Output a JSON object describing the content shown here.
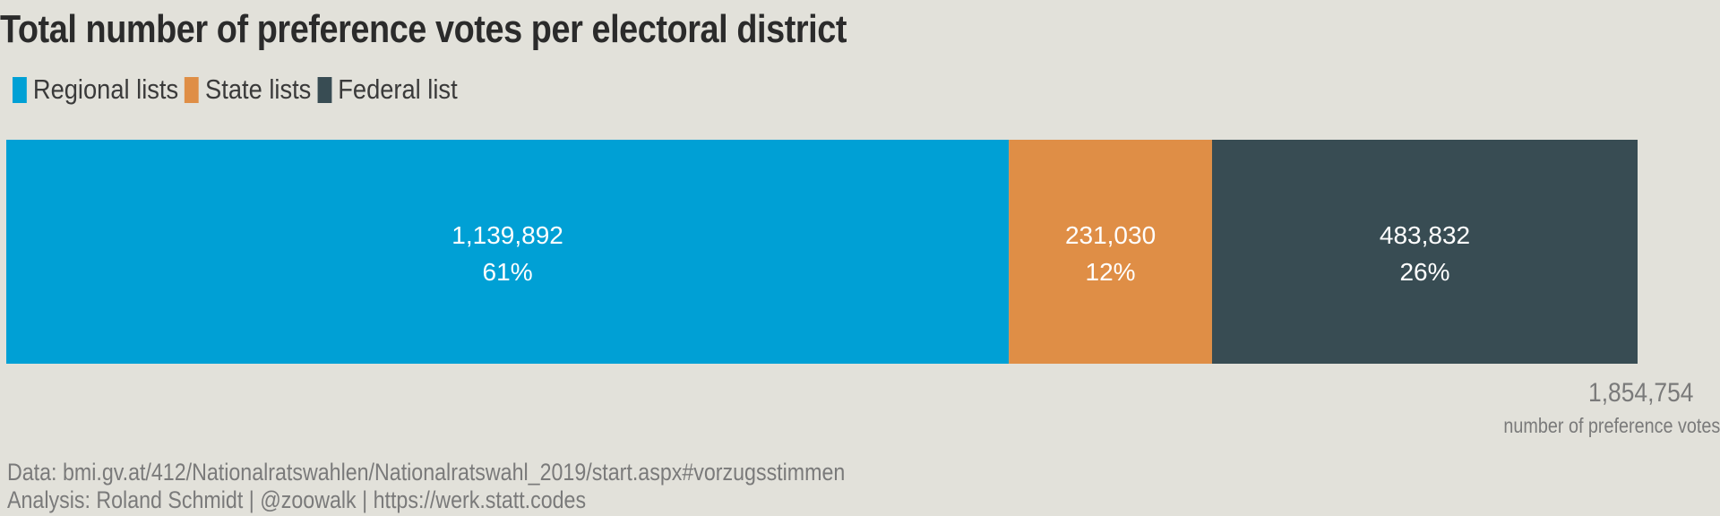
{
  "chart_data": {
    "type": "bar",
    "orientation": "horizontal-stacked",
    "title": "Total number of preference votes per electoral district",
    "series": [
      {
        "name": "Regional lists",
        "value": 1139892,
        "value_label": "1,139,892",
        "percent_label": "61%",
        "color": "#00a0d5"
      },
      {
        "name": "State lists",
        "value": 231030,
        "value_label": "231,030",
        "percent_label": "12%",
        "color": "#df8e46"
      },
      {
        "name": "Federal list",
        "value": 483832,
        "value_label": "483,832",
        "percent_label": "26%",
        "color": "#384c53"
      }
    ],
    "total": 1854754,
    "total_label": "1,854,754",
    "total_caption": "number of preference votes",
    "legend_position": "top-left"
  },
  "footer": {
    "source": "Data: bmi.gv.at/412/Nationalratswahlen/Nationalratswahl_2019/start.aspx#vorzugsstimmen",
    "analysis": "Analysis: Roland Schmidt | @zoowalk | https://werk.statt.codes"
  }
}
